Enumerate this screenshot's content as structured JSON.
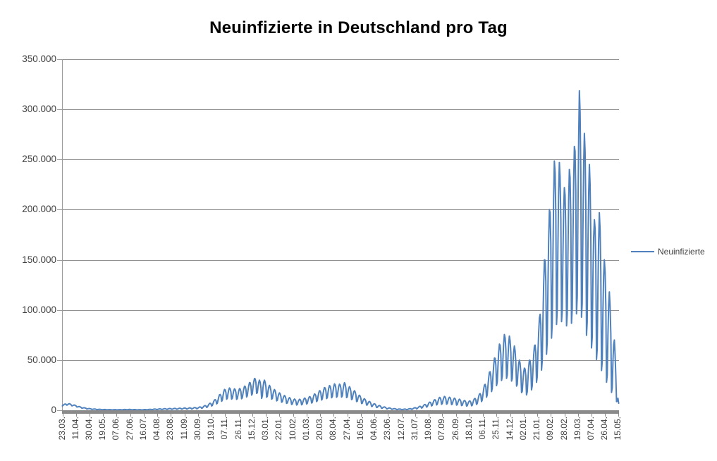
{
  "chart_data": {
    "type": "line",
    "title": "Neuinfizierte in Deutschland pro Tag",
    "xlabel": "",
    "ylabel": "",
    "ylim": [
      0,
      350000
    ],
    "ytick_step": 50000,
    "grid": true,
    "y_tick_labels": [
      "350.000",
      "300.000",
      "250.000",
      "200.000",
      "150.000",
      "100.000",
      "50.000",
      "0"
    ],
    "x_tick_labels": [
      "23.03.",
      "11.04.",
      "30.04.",
      "19.05.",
      "07.06.",
      "27.06.",
      "16.07.",
      "04.08.",
      "23.08.",
      "11.09.",
      "30.09.",
      "19.10.",
      "07.11.",
      "26.11.",
      "15.12.",
      "03.01.",
      "22.01.",
      "10.02.",
      "01.03.",
      "20.03.",
      "08.04.",
      "27.04.",
      "16.05.",
      "04.06.",
      "23.06.",
      "12.07.",
      "31.07.",
      "19.08.",
      "07.09.",
      "26.09.",
      "18.10.",
      "06.11.",
      "25.11.",
      "14.12.",
      "02.01.",
      "21.01.",
      "09.02.",
      "28.02.",
      "19.03.",
      "07.04.",
      "26.04.",
      "15.05."
    ],
    "x_tick_interval_days": 19,
    "total_days": 780,
    "legend": {
      "label": "Neuinfizierte",
      "position": "right"
    },
    "series": [
      {
        "name": "Neuinfizierte",
        "color": "#4F81BD",
        "line_width": 2,
        "weekly_shape": [
          0.1,
          0.5,
          0.82,
          1.0,
          0.93,
          0.68,
          0.02
        ],
        "envelope_high": [
          [
            0,
            5200
          ],
          [
            4,
            6300
          ],
          [
            8,
            6900
          ],
          [
            12,
            6100
          ],
          [
            18,
            5000
          ],
          [
            25,
            3400
          ],
          [
            32,
            2300
          ],
          [
            40,
            1500
          ],
          [
            50,
            1000
          ],
          [
            60,
            750
          ],
          [
            70,
            600
          ],
          [
            80,
            650
          ],
          [
            90,
            850
          ],
          [
            100,
            750
          ],
          [
            110,
            600
          ],
          [
            120,
            800
          ],
          [
            130,
            1200
          ],
          [
            140,
            1500
          ],
          [
            150,
            1750
          ],
          [
            160,
            1900
          ],
          [
            170,
            2200
          ],
          [
            180,
            2400
          ],
          [
            190,
            2900
          ],
          [
            197,
            4000
          ],
          [
            204,
            5800
          ],
          [
            211,
            9000
          ],
          [
            218,
            13500
          ],
          [
            225,
            20000
          ],
          [
            232,
            22500
          ],
          [
            239,
            21500
          ],
          [
            246,
            21000
          ],
          [
            253,
            23000
          ],
          [
            260,
            26500
          ],
          [
            267,
            30500
          ],
          [
            272,
            33500
          ],
          [
            276,
            30000
          ],
          [
            279,
            26500
          ],
          [
            281,
            32000
          ],
          [
            285,
            28000
          ],
          [
            292,
            23500
          ],
          [
            299,
            19500
          ],
          [
            306,
            16500
          ],
          [
            313,
            14000
          ],
          [
            320,
            12000
          ],
          [
            327,
            10800
          ],
          [
            334,
            11000
          ],
          [
            341,
            12500
          ],
          [
            348,
            14000
          ],
          [
            355,
            17000
          ],
          [
            362,
            20500
          ],
          [
            369,
            23500
          ],
          [
            376,
            25000
          ],
          [
            381,
            26300
          ],
          [
            388,
            26000
          ],
          [
            395,
            27500
          ],
          [
            402,
            23500
          ],
          [
            409,
            19500
          ],
          [
            416,
            15000
          ],
          [
            423,
            11500
          ],
          [
            430,
            8800
          ],
          [
            437,
            6500
          ],
          [
            444,
            4700
          ],
          [
            451,
            3300
          ],
          [
            458,
            2300
          ],
          [
            465,
            1600
          ],
          [
            472,
            1200
          ],
          [
            479,
            1100
          ],
          [
            486,
            1500
          ],
          [
            493,
            2400
          ],
          [
            500,
            3800
          ],
          [
            507,
            5600
          ],
          [
            514,
            8000
          ],
          [
            521,
            10500
          ],
          [
            528,
            12800
          ],
          [
            535,
            13800
          ],
          [
            542,
            13000
          ],
          [
            549,
            12000
          ],
          [
            556,
            11000
          ],
          [
            563,
            9800
          ],
          [
            570,
            9200
          ],
          [
            577,
            11500
          ],
          [
            584,
            16000
          ],
          [
            591,
            25000
          ],
          [
            598,
            38000
          ],
          [
            605,
            52000
          ],
          [
            612,
            66000
          ],
          [
            619,
            75500
          ],
          [
            626,
            74000
          ],
          [
            633,
            64000
          ],
          [
            640,
            50000
          ],
          [
            647,
            42000
          ],
          [
            654,
            50000
          ],
          [
            661,
            64000
          ],
          [
            668,
            92000
          ],
          [
            675,
            150000
          ],
          [
            682,
            200000
          ],
          [
            689,
            248500
          ],
          [
            696,
            247000
          ],
          [
            703,
            222000
          ],
          [
            710,
            240000
          ],
          [
            717,
            263000
          ],
          [
            724,
            318500
          ],
          [
            731,
            276000
          ],
          [
            738,
            245000
          ],
          [
            745,
            190000
          ],
          [
            752,
            197000
          ],
          [
            759,
            150000
          ],
          [
            766,
            118000
          ],
          [
            773,
            70000
          ],
          [
            779,
            7500
          ]
        ],
        "envelope_low": [
          [
            0,
            4200
          ],
          [
            4,
            4800
          ],
          [
            8,
            5200
          ],
          [
            12,
            4600
          ],
          [
            18,
            3600
          ],
          [
            25,
            2400
          ],
          [
            32,
            1500
          ],
          [
            40,
            900
          ],
          [
            50,
            550
          ],
          [
            60,
            400
          ],
          [
            70,
            330
          ],
          [
            80,
            350
          ],
          [
            90,
            420
          ],
          [
            100,
            380
          ],
          [
            110,
            320
          ],
          [
            120,
            420
          ],
          [
            130,
            600
          ],
          [
            140,
            750
          ],
          [
            150,
            900
          ],
          [
            160,
            1000
          ],
          [
            170,
            1150
          ],
          [
            180,
            1250
          ],
          [
            190,
            1500
          ],
          [
            197,
            2100
          ],
          [
            204,
            3000
          ],
          [
            211,
            4600
          ],
          [
            218,
            6800
          ],
          [
            225,
            9500
          ],
          [
            232,
            11200
          ],
          [
            239,
            10800
          ],
          [
            246,
            10500
          ],
          [
            253,
            11500
          ],
          [
            260,
            13500
          ],
          [
            267,
            15200
          ],
          [
            272,
            16500
          ],
          [
            276,
            13000
          ],
          [
            279,
            11500
          ],
          [
            281,
            14000
          ],
          [
            285,
            13000
          ],
          [
            292,
            11000
          ],
          [
            299,
            9300
          ],
          [
            306,
            8000
          ],
          [
            313,
            6800
          ],
          [
            320,
            5800
          ],
          [
            327,
            5100
          ],
          [
            334,
            5200
          ],
          [
            341,
            6000
          ],
          [
            348,
            6800
          ],
          [
            355,
            8200
          ],
          [
            362,
            9800
          ],
          [
            369,
            11200
          ],
          [
            376,
            12000
          ],
          [
            381,
            12800
          ],
          [
            388,
            12500
          ],
          [
            395,
            13200
          ],
          [
            402,
            11200
          ],
          [
            409,
            9300
          ],
          [
            416,
            7300
          ],
          [
            423,
            5600
          ],
          [
            430,
            4200
          ],
          [
            437,
            3100
          ],
          [
            444,
            2200
          ],
          [
            451,
            1550
          ],
          [
            458,
            1100
          ],
          [
            465,
            780
          ],
          [
            472,
            560
          ],
          [
            479,
            520
          ],
          [
            486,
            680
          ],
          [
            493,
            1100
          ],
          [
            500,
            1800
          ],
          [
            507,
            2600
          ],
          [
            514,
            3700
          ],
          [
            521,
            4800
          ],
          [
            528,
            5600
          ],
          [
            535,
            6000
          ],
          [
            542,
            5700
          ],
          [
            549,
            5200
          ],
          [
            556,
            4700
          ],
          [
            563,
            4200
          ],
          [
            570,
            3900
          ],
          [
            577,
            4800
          ],
          [
            584,
            6800
          ],
          [
            591,
            10500
          ],
          [
            598,
            15500
          ],
          [
            605,
            21500
          ],
          [
            612,
            27000
          ],
          [
            619,
            31500
          ],
          [
            626,
            30000
          ],
          [
            633,
            26000
          ],
          [
            640,
            20000
          ],
          [
            647,
            13000
          ],
          [
            654,
            17000
          ],
          [
            661,
            23000
          ],
          [
            668,
            32000
          ],
          [
            675,
            47000
          ],
          [
            682,
            62000
          ],
          [
            689,
            78000
          ],
          [
            696,
            88000
          ],
          [
            703,
            82000
          ],
          [
            710,
            80000
          ],
          [
            717,
            88000
          ],
          [
            724,
            98000
          ],
          [
            731,
            76000
          ],
          [
            738,
            64000
          ],
          [
            745,
            52000
          ],
          [
            752,
            42000
          ],
          [
            759,
            30000
          ],
          [
            766,
            20000
          ],
          [
            773,
            11000
          ],
          [
            779,
            5000
          ]
        ]
      }
    ]
  },
  "colors": {
    "background": "#FFFFFF",
    "series_line": "#4F81BD",
    "gridline": "#919191",
    "axis_line": "#9B9B9B",
    "axis_band": "#8A8A8A",
    "tick_label_text": "#3F3F3F",
    "title_text": "#000000"
  }
}
